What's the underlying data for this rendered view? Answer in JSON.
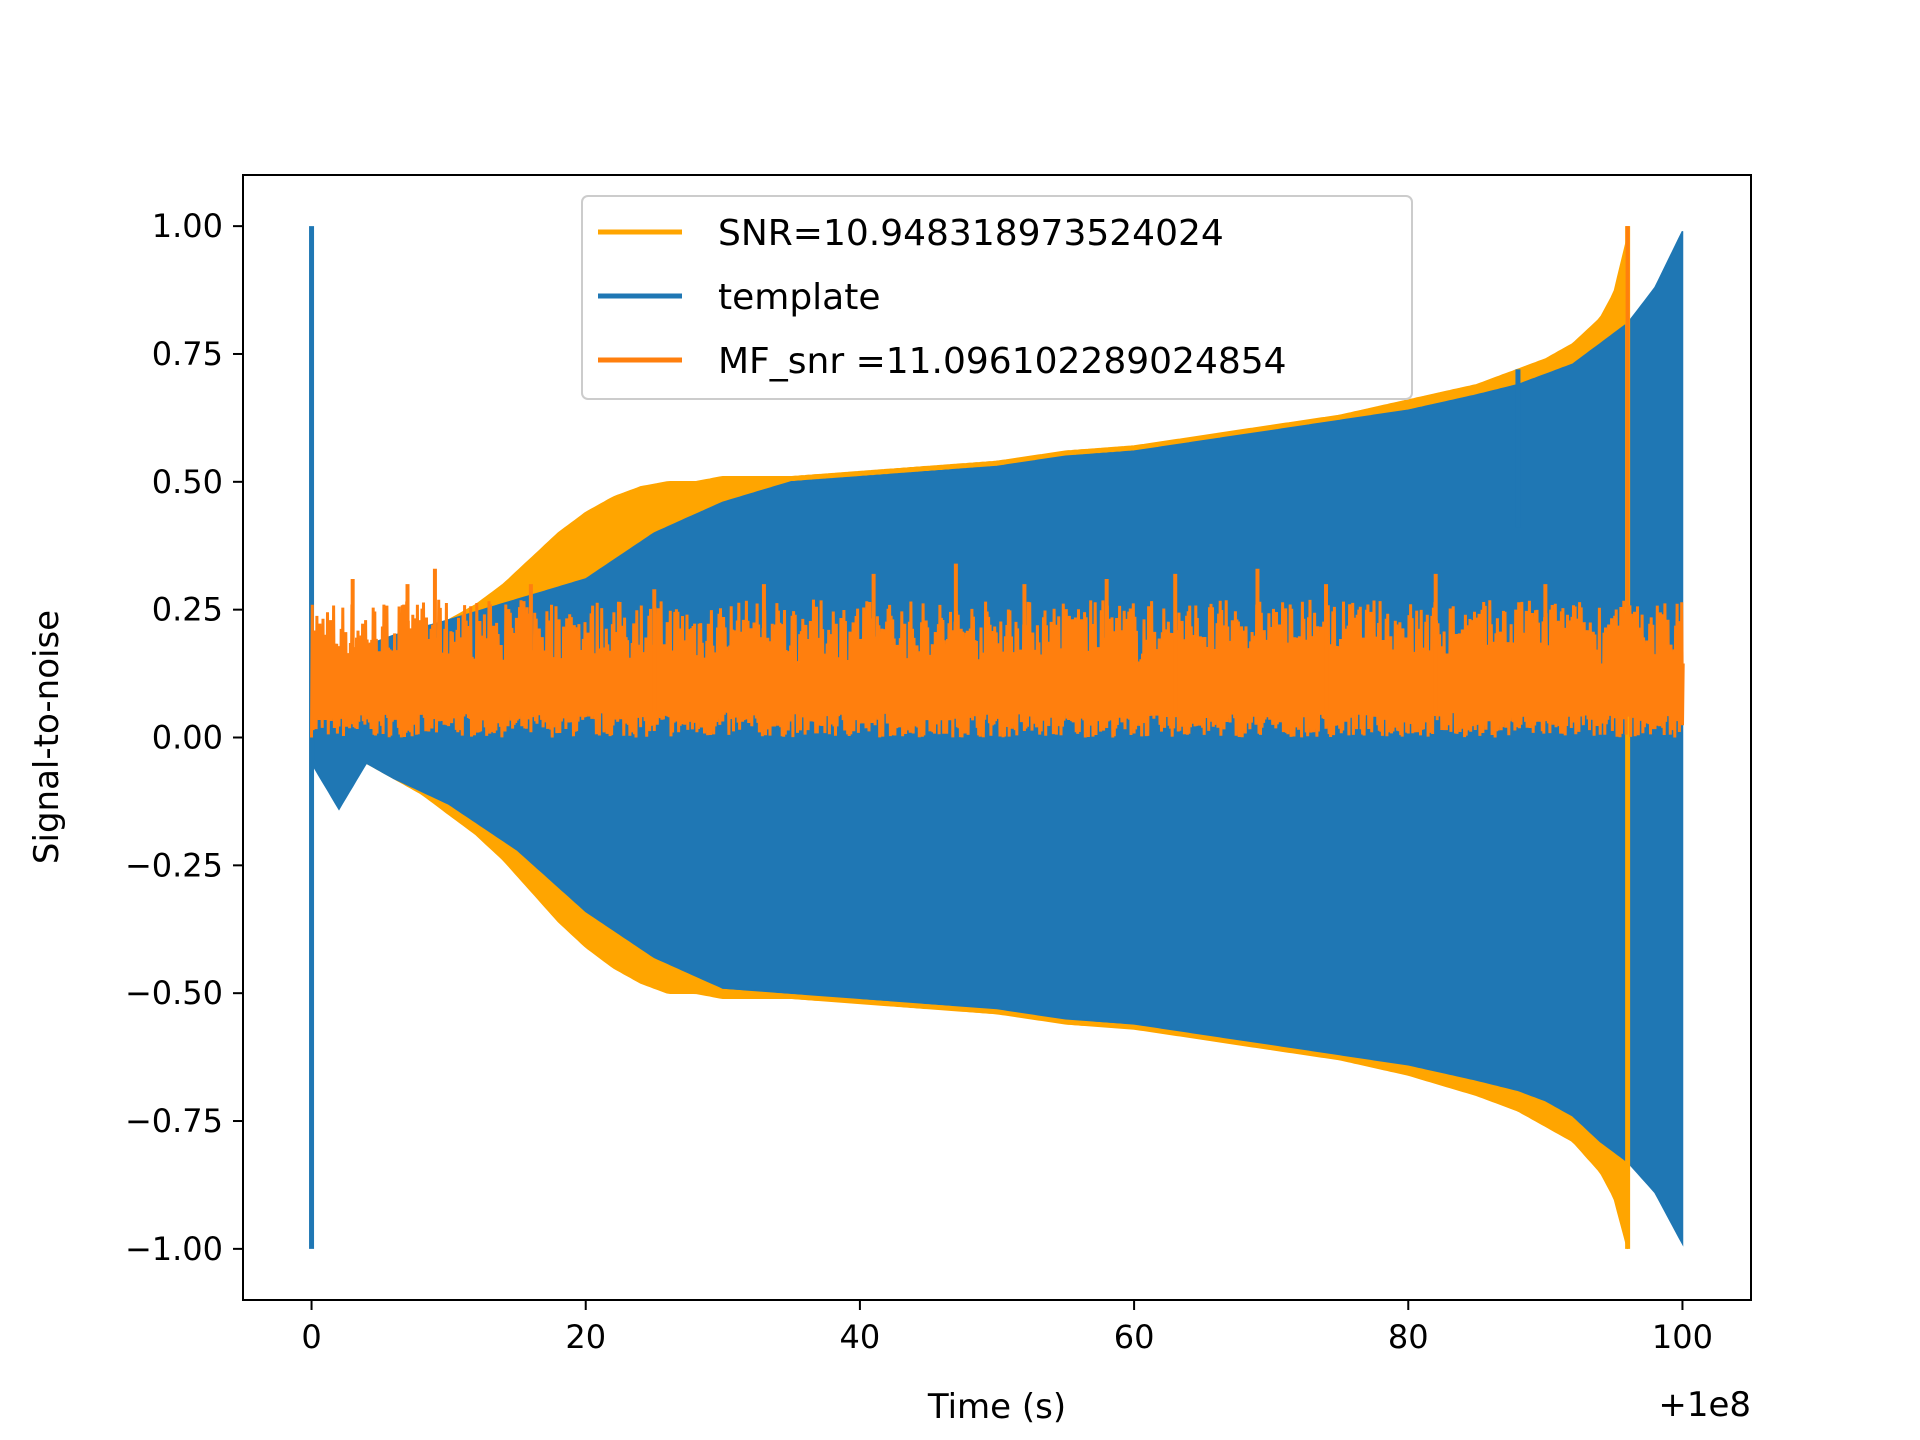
{
  "chart_data": {
    "type": "line",
    "title": "",
    "xlabel": "Time (s)",
    "ylabel": "Signal-to-noise",
    "x_offset_label": "+1e8",
    "xlim": [
      -5,
      105
    ],
    "ylim": [
      -1.1,
      1.1
    ],
    "x_ticks": [
      0,
      20,
      40,
      60,
      80,
      100
    ],
    "x_tick_labels": [
      "0",
      "20",
      "40",
      "60",
      "80",
      "100"
    ],
    "y_ticks": [
      1.0,
      0.75,
      0.5,
      0.25,
      0.0,
      -0.25,
      -0.5,
      -0.75,
      -1.0
    ],
    "y_tick_labels": [
      "1.00",
      "0.75",
      "0.50",
      "0.25",
      "0.00",
      "−0.25",
      "−0.50",
      "−0.75",
      "−1.00"
    ],
    "grid": false,
    "legend_position": "upper center",
    "series": [
      {
        "name": "SNR=10.948318973524024",
        "color": "#ffa500",
        "style": "envelope",
        "x": [
          0,
          2,
          4,
          6,
          8,
          10,
          12,
          14,
          16,
          18,
          20,
          22,
          24,
          26,
          28,
          30,
          35,
          40,
          45,
          50,
          55,
          60,
          65,
          70,
          75,
          80,
          85,
          88,
          90,
          92,
          94,
          95,
          96
        ],
        "upper": [
          0.05,
          0.1,
          0.15,
          0.18,
          0.2,
          0.23,
          0.26,
          0.3,
          0.35,
          0.4,
          0.44,
          0.47,
          0.49,
          0.5,
          0.5,
          0.51,
          0.51,
          0.52,
          0.53,
          0.54,
          0.56,
          0.57,
          0.59,
          0.61,
          0.63,
          0.66,
          0.69,
          0.72,
          0.74,
          0.77,
          0.82,
          0.87,
          0.98
        ],
        "lower": [
          -0.05,
          -0.04,
          -0.05,
          -0.08,
          -0.11,
          -0.15,
          -0.19,
          -0.24,
          -0.3,
          -0.36,
          -0.41,
          -0.45,
          -0.48,
          -0.5,
          -0.5,
          -0.51,
          -0.51,
          -0.52,
          -0.53,
          -0.54,
          -0.56,
          -0.57,
          -0.59,
          -0.61,
          -0.63,
          -0.66,
          -0.7,
          -0.73,
          -0.76,
          -0.79,
          -0.85,
          -0.9,
          -1.0
        ]
      },
      {
        "name": "template",
        "color": "#1f77b4",
        "style": "envelope",
        "x": [
          0,
          2,
          4,
          6,
          10,
          15,
          20,
          25,
          30,
          35,
          40,
          45,
          50,
          55,
          60,
          65,
          70,
          75,
          80,
          85,
          88,
          90,
          92,
          94,
          96,
          98,
          100
        ],
        "upper": [
          0.05,
          0.15,
          0.18,
          0.2,
          0.23,
          0.27,
          0.31,
          0.4,
          0.46,
          0.5,
          0.51,
          0.52,
          0.53,
          0.55,
          0.56,
          0.58,
          0.6,
          0.62,
          0.64,
          0.67,
          0.69,
          0.71,
          0.73,
          0.77,
          0.81,
          0.88,
          0.99
        ],
        "lower": [
          -0.05,
          -0.14,
          -0.05,
          -0.08,
          -0.13,
          -0.22,
          -0.34,
          -0.43,
          -0.49,
          -0.5,
          -0.51,
          -0.52,
          -0.53,
          -0.55,
          -0.56,
          -0.58,
          -0.6,
          -0.62,
          -0.64,
          -0.67,
          -0.69,
          -0.71,
          -0.74,
          -0.79,
          -0.83,
          -0.89,
          -0.99
        ]
      },
      {
        "name": " MF_snr =11.096102289024854",
        "color": "#ff7f0e",
        "style": "noise-band",
        "x_range": [
          0,
          100
        ],
        "lower_band": [
          0.0,
          0.05
        ],
        "upper_band": [
          0.14,
          0.27
        ],
        "spikes": [
          {
            "x": 3,
            "y": 0.31
          },
          {
            "x": 7,
            "y": 0.3
          },
          {
            "x": 9,
            "y": 0.33
          },
          {
            "x": 16,
            "y": 0.3
          },
          {
            "x": 25,
            "y": 0.29
          },
          {
            "x": 33,
            "y": 0.3
          },
          {
            "x": 41,
            "y": 0.32
          },
          {
            "x": 47,
            "y": 0.34
          },
          {
            "x": 52,
            "y": 0.3
          },
          {
            "x": 58,
            "y": 0.31
          },
          {
            "x": 63,
            "y": 0.32
          },
          {
            "x": 69,
            "y": 0.33
          },
          {
            "x": 74,
            "y": 0.3
          },
          {
            "x": 82,
            "y": 0.32
          },
          {
            "x": 90,
            "y": 0.3
          },
          {
            "x": 96,
            "y": 1.0
          }
        ]
      }
    ],
    "annotations": [
      {
        "series": "template",
        "x": 0,
        "y_from": -1.0,
        "y_to": 1.0
      },
      {
        "series": "template",
        "x": 88,
        "y_from": 0.72,
        "y_to": 0.41
      },
      {
        "series": "SNR=10.948318973524024",
        "x": 96,
        "y_from": -1.0,
        "y_to": 1.0
      }
    ]
  }
}
